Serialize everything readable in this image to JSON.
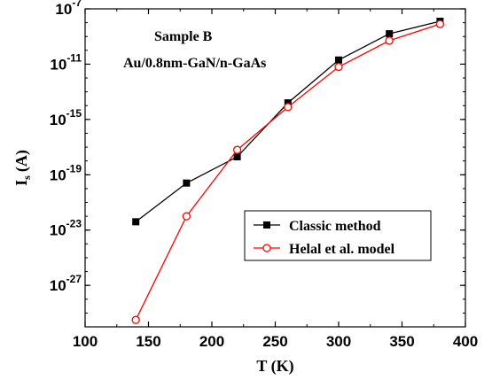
{
  "chart_data": {
    "type": "line",
    "xlabel": "T (K)",
    "ylabel_main": "I",
    "ylabel_sub": "s",
    "ylabel_unit": "(A)",
    "scale_y": "log",
    "xlim": [
      100,
      400
    ],
    "ylim_exp": [
      -30,
      -7
    ],
    "x_ticks": [
      "100",
      "150",
      "200",
      "250",
      "300",
      "350",
      "400"
    ],
    "y_ticks": [
      {
        "base": "10",
        "exp": "-7"
      },
      {
        "base": "10",
        "exp": "-11"
      },
      {
        "base": "10",
        "exp": "-15"
      },
      {
        "base": "10",
        "exp": "-19"
      },
      {
        "base": "10",
        "exp": "-23"
      },
      {
        "base": "10",
        "exp": "-27"
      }
    ],
    "annotations": [
      "Sample B",
      "Au/0.8nm-GaN/n-GaAs"
    ],
    "legend_position": "center-right",
    "series": [
      {
        "name": "Classic method",
        "color": "#000000",
        "marker": "filled-square",
        "x": [
          140,
          180,
          220,
          260,
          300,
          340,
          380
        ],
        "log10_y": [
          -22.4,
          -19.6,
          -17.7,
          -13.8,
          -10.7,
          -8.8,
          -7.9
        ]
      },
      {
        "name": "Helal et al. model",
        "color": "#ff0000",
        "marker": "open-circle",
        "x": [
          140,
          180,
          220,
          260,
          300,
          340,
          380
        ],
        "log10_y": [
          -29.5,
          -22.0,
          -17.2,
          -14.1,
          -11.2,
          -9.3,
          -8.1
        ]
      }
    ]
  }
}
